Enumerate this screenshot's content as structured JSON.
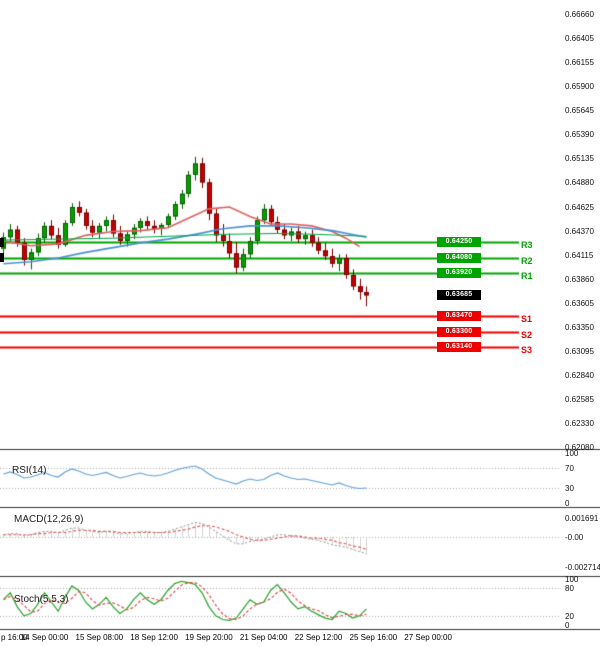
{
  "colors": {
    "background": "#ffffff",
    "candle_up": "#0a9b00",
    "candle_up_border": "#045f00",
    "candle_down": "#c40000",
    "candle_down_border": "#7a0000",
    "ma_red": "#e06060",
    "ma_blue": "#4a90d9",
    "ma_green": "#00a646",
    "resistance": "#00a400",
    "support": "#ee0000",
    "current": "#000000",
    "rsi_line": "#64a0dc",
    "macd_line": "#9a9a9a",
    "macd_signal": "#e06666",
    "macd_histogram": "#d4d4d4",
    "stoch_k": "#28a428",
    "stoch_d": "#e05555",
    "axis_text": "#111111",
    "separator": "#333333",
    "dotted_level": "#aaaaaa"
  },
  "x_axis": {
    "labels": [
      {
        "text": "p 16:00",
        "i": -2
      },
      {
        "text": "14 Sep 00:00",
        "i": 6
      },
      {
        "text": "15 Sep 08:00",
        "i": 14
      },
      {
        "text": "18 Sep 12:00",
        "i": 22
      },
      {
        "text": "19 Sep 20:00",
        "i": 30
      },
      {
        "text": "21 Sep 04:00",
        "i": 38
      },
      {
        "text": "22 Sep 12:00",
        "i": 46
      },
      {
        "text": "25 Sep 16:00",
        "i": 54
      },
      {
        "text": "27 Sep 00:00",
        "i": 62
      }
    ]
  },
  "chart_data": [
    {
      "id": "main",
      "type": "candlestick",
      "timeframe": "4h",
      "ylim": [
        0.6207,
        0.6681
      ],
      "y_ticks": [
        "0.66660",
        "0.66405",
        "0.66155",
        "0.65900",
        "0.65645",
        "0.65390",
        "0.65135",
        "0.64880",
        "0.64625",
        "0.64370",
        "0.64115",
        "0.63860",
        "0.63605",
        "0.63350",
        "0.63095",
        "0.62840",
        "0.62585",
        "0.62330",
        "0.62080"
      ],
      "levels": [
        {
          "name": "R3",
          "value": "0.64250",
          "price": 0.6425,
          "kind": "resistance"
        },
        {
          "name": "R2",
          "value": "0.64080",
          "price": 0.6408,
          "kind": "resistance"
        },
        {
          "name": "R1",
          "value": "0.63920",
          "price": 0.6392,
          "kind": "resistance"
        },
        {
          "name": "",
          "value": "0.63685",
          "price": 0.63685,
          "kind": "current"
        },
        {
          "name": "S1",
          "value": "0.63470",
          "price": 0.6347,
          "kind": "support"
        },
        {
          "name": "S2",
          "value": "0.63300",
          "price": 0.633,
          "kind": "support"
        },
        {
          "name": "S3",
          "value": "0.63140",
          "price": 0.6314,
          "kind": "support"
        }
      ],
      "candles": [
        [
          0.6418,
          0.6435,
          0.641,
          0.643
        ],
        [
          0.643,
          0.6444,
          0.6425,
          0.6438
        ],
        [
          0.6438,
          0.6442,
          0.642,
          0.6424
        ],
        [
          0.6424,
          0.6429,
          0.64,
          0.6406
        ],
        [
          0.6406,
          0.6418,
          0.6396,
          0.6414
        ],
        [
          0.6414,
          0.6434,
          0.641,
          0.6429
        ],
        [
          0.6429,
          0.6446,
          0.6424,
          0.6442
        ],
        [
          0.6442,
          0.6448,
          0.6428,
          0.6432
        ],
        [
          0.6432,
          0.644,
          0.6418,
          0.6422
        ],
        [
          0.6422,
          0.6448,
          0.642,
          0.6445
        ],
        [
          0.6445,
          0.6466,
          0.6442,
          0.6462
        ],
        [
          0.6462,
          0.6468,
          0.6452,
          0.6456
        ],
        [
          0.6456,
          0.646,
          0.6438,
          0.6442
        ],
        [
          0.6442,
          0.6448,
          0.643,
          0.6435
        ],
        [
          0.6435,
          0.6445,
          0.6428,
          0.6442
        ],
        [
          0.6442,
          0.6452,
          0.6436,
          0.6448
        ],
        [
          0.6448,
          0.6454,
          0.643,
          0.6434
        ],
        [
          0.6434,
          0.6442,
          0.6422,
          0.6426
        ],
        [
          0.6426,
          0.6436,
          0.642,
          0.6433
        ],
        [
          0.6433,
          0.6444,
          0.6428,
          0.644
        ],
        [
          0.644,
          0.645,
          0.6435,
          0.6447
        ],
        [
          0.6447,
          0.6452,
          0.6438,
          0.6442
        ],
        [
          0.6442,
          0.6448,
          0.6434,
          0.6439
        ],
        [
          0.6439,
          0.6445,
          0.6432,
          0.6443
        ],
        [
          0.6443,
          0.6455,
          0.644,
          0.6452
        ],
        [
          0.6452,
          0.6468,
          0.6448,
          0.6465
        ],
        [
          0.6465,
          0.648,
          0.646,
          0.6476
        ],
        [
          0.6476,
          0.65,
          0.6472,
          0.6496
        ],
        [
          0.6496,
          0.6515,
          0.649,
          0.6508
        ],
        [
          0.6508,
          0.6514,
          0.6482,
          0.6488
        ],
        [
          0.6488,
          0.6492,
          0.6448,
          0.6455
        ],
        [
          0.6455,
          0.646,
          0.6425,
          0.6432
        ],
        [
          0.6432,
          0.6444,
          0.642,
          0.6426
        ],
        [
          0.6426,
          0.6434,
          0.6408,
          0.6413
        ],
        [
          0.6413,
          0.6425,
          0.6392,
          0.6398
        ],
        [
          0.6398,
          0.6418,
          0.6394,
          0.6412
        ],
        [
          0.6412,
          0.643,
          0.6408,
          0.6426
        ],
        [
          0.6426,
          0.6452,
          0.6422,
          0.6448
        ],
        [
          0.6448,
          0.6465,
          0.6444,
          0.646
        ],
        [
          0.646,
          0.6464,
          0.6442,
          0.6446
        ],
        [
          0.6446,
          0.6452,
          0.6434,
          0.6438
        ],
        [
          0.6438,
          0.6444,
          0.6428,
          0.6432
        ],
        [
          0.6432,
          0.644,
          0.6426,
          0.6436
        ],
        [
          0.6436,
          0.6442,
          0.6424,
          0.6428
        ],
        [
          0.6428,
          0.6436,
          0.6422,
          0.6432
        ],
        [
          0.6432,
          0.6438,
          0.642,
          0.6424
        ],
        [
          0.6424,
          0.643,
          0.6412,
          0.6416
        ],
        [
          0.6416,
          0.6424,
          0.6406,
          0.641
        ],
        [
          0.641,
          0.6418,
          0.6398,
          0.6402
        ],
        [
          0.6402,
          0.6412,
          0.6394,
          0.6408
        ],
        [
          0.6408,
          0.6412,
          0.6386,
          0.639
        ],
        [
          0.639,
          0.6396,
          0.6374,
          0.6378
        ],
        [
          0.6378,
          0.6386,
          0.6364,
          0.6372
        ],
        [
          0.6372,
          0.6378,
          0.6357,
          0.63685
        ]
      ],
      "moving_averages": [
        {
          "name": "ma-red",
          "color_key": "ma_red",
          "width": 1.6,
          "points": [
            [
              0,
              0.6426
            ],
            [
              4,
              0.6421
            ],
            [
              8,
              0.6423
            ],
            [
              12,
              0.6432
            ],
            [
              16,
              0.6436
            ],
            [
              20,
              0.6437
            ],
            [
              24,
              0.644
            ],
            [
              27,
              0.645
            ],
            [
              30,
              0.646
            ],
            [
              33,
              0.6462
            ],
            [
              36,
              0.6452
            ],
            [
              39,
              0.6444
            ],
            [
              42,
              0.6444
            ],
            [
              45,
              0.6442
            ],
            [
              48,
              0.6436
            ],
            [
              50,
              0.6429
            ],
            [
              52,
              0.642
            ]
          ]
        },
        {
          "name": "ma-blue",
          "color_key": "ma_blue",
          "width": 1.6,
          "points": [
            [
              0,
              0.6402
            ],
            [
              4,
              0.6404
            ],
            [
              8,
              0.6408
            ],
            [
              12,
              0.6414
            ],
            [
              16,
              0.6419
            ],
            [
              20,
              0.6424
            ],
            [
              24,
              0.6428
            ],
            [
              28,
              0.6433
            ],
            [
              32,
              0.6439
            ],
            [
              36,
              0.6442
            ],
            [
              40,
              0.6442
            ],
            [
              44,
              0.644
            ],
            [
              48,
              0.6437
            ],
            [
              53,
              0.643
            ]
          ]
        },
        {
          "name": "ma-green",
          "color_key": "ma_green",
          "width": 1,
          "points": [
            [
              0,
              0.6427
            ],
            [
              8,
              0.6428
            ],
            [
              16,
              0.6429
            ],
            [
              24,
              0.6431
            ],
            [
              32,
              0.6433
            ],
            [
              40,
              0.6434
            ],
            [
              46,
              0.6433
            ],
            [
              53,
              0.6431
            ]
          ]
        }
      ]
    },
    {
      "id": "rsi",
      "type": "line",
      "label": "RSI(14)",
      "ylim": [
        0,
        100
      ],
      "y_ticks": [
        "100",
        "70",
        "30",
        "0"
      ],
      "guides": [
        70,
        30
      ],
      "values": [
        58,
        62,
        57,
        50,
        52,
        56,
        61,
        55,
        52,
        62,
        68,
        64,
        58,
        55,
        58,
        61,
        55,
        50,
        53,
        57,
        60,
        56,
        54,
        56,
        60,
        65,
        69,
        72,
        74,
        68,
        58,
        50,
        46,
        42,
        38,
        44,
        48,
        45,
        47,
        55,
        60,
        54,
        50,
        47,
        48,
        45,
        42,
        39,
        36,
        40,
        35,
        31,
        29,
        30
      ]
    },
    {
      "id": "macd",
      "type": "line",
      "label": "MACD(12,26,9)",
      "y_ticks": [
        "0.001691",
        "-0.00",
        "-0.002714"
      ],
      "y_tick_values": [
        0.001691,
        0,
        -0.002714
      ],
      "guides": [
        0
      ],
      "macd": [
        0.0002,
        0.0003,
        0.0003,
        0.0001,
        0.0002,
        0.0004,
        0.0005,
        0.0005,
        0.0004,
        0.0006,
        0.0008,
        0.0008,
        0.0006,
        0.0005,
        0.0004,
        0.0005,
        0.0004,
        0.0003,
        0.0003,
        0.0004,
        0.0005,
        0.0005,
        0.0004,
        0.0004,
        0.0005,
        0.0007,
        0.0009,
        0.0011,
        0.0013,
        0.0012,
        0.0009,
        0.0005,
        0.0001,
        -0.0003,
        -0.0006,
        -0.0006,
        -0.0004,
        -0.0003,
        -0.0002,
        0.0,
        0.0002,
        0.0002,
        0.0001,
        0.0,
        -0.0001,
        -0.0002,
        -0.0003,
        -0.0005,
        -0.0007,
        -0.0008,
        -0.0009,
        -0.0011,
        -0.0013,
        -0.0015
      ],
      "signal": [
        0.0002,
        0.0002,
        0.0002,
        0.0002,
        0.0002,
        0.0003,
        0.0003,
        0.0004,
        0.0004,
        0.0004,
        0.0005,
        0.0006,
        0.0006,
        0.0006,
        0.0005,
        0.0005,
        0.0005,
        0.0004,
        0.0004,
        0.0004,
        0.0004,
        0.0004,
        0.0004,
        0.0004,
        0.0004,
        0.0005,
        0.0006,
        0.0007,
        0.0009,
        0.001,
        0.001,
        0.0009,
        0.0007,
        0.0005,
        0.0002,
        0.0,
        -0.0002,
        -0.0003,
        -0.0003,
        -0.0002,
        -0.0001,
        0.0,
        0.0001,
        0.0001,
        0.0,
        -0.0001,
        -0.0001,
        -0.0002,
        -0.0003,
        -0.0005,
        -0.0006,
        -0.0008,
        -0.0009,
        -0.0011
      ]
    },
    {
      "id": "stoch",
      "type": "line",
      "label": "Stoch(5,5,3)",
      "ylim": [
        0,
        100
      ],
      "y_ticks": [
        "100",
        "80",
        "20",
        "0"
      ],
      "guides": [
        80,
        20
      ],
      "k": [
        55,
        70,
        40,
        20,
        25,
        45,
        70,
        50,
        30,
        60,
        85,
        75,
        50,
        35,
        45,
        60,
        40,
        25,
        35,
        55,
        70,
        55,
        45,
        55,
        75,
        90,
        95,
        92,
        88,
        70,
        40,
        20,
        12,
        10,
        15,
        35,
        55,
        45,
        50,
        75,
        88,
        70,
        50,
        35,
        40,
        30,
        22,
        15,
        12,
        30,
        25,
        15,
        20,
        35
      ],
      "d": [
        55,
        62,
        55,
        43,
        28,
        30,
        47,
        55,
        50,
        47,
        58,
        73,
        70,
        53,
        43,
        47,
        48,
        42,
        33,
        38,
        53,
        60,
        57,
        52,
        58,
        73,
        87,
        92,
        92,
        83,
        66,
        43,
        24,
        14,
        12,
        20,
        35,
        45,
        50,
        57,
        71,
        78,
        69,
        52,
        42,
        35,
        31,
        22,
        16,
        19,
        23,
        23,
        20,
        23
      ]
    }
  ]
}
